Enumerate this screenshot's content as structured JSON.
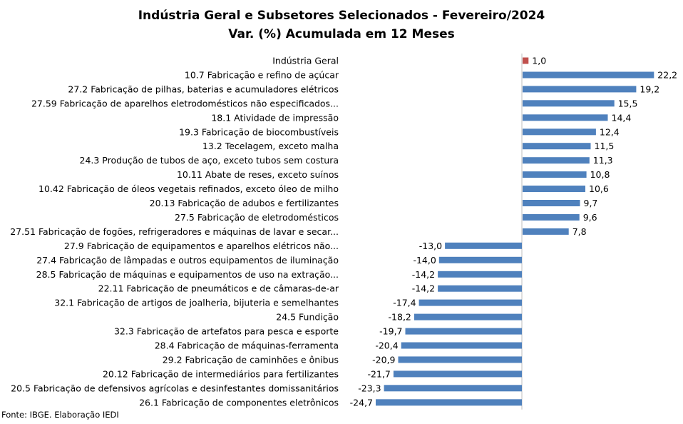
{
  "chart_data": {
    "type": "bar",
    "orientation": "horizontal",
    "title": "Indústria Geral e Subsetores Selecionados - Fevereiro/2024",
    "subtitle": "Var. (%) Acumulada em 12 Meses",
    "categories": [
      "Indústria Geral",
      "10.7 Fabricação e refino de açúcar",
      "27.2 Fabricação de pilhas, baterias e acumuladores elétricos",
      "27.59 Fabricação de aparelhos eletrodomésticos não especificados...",
      "18.1 Atividade de impressão",
      "19.3 Fabricação de biocombustíveis",
      "13.2 Tecelagem, exceto malha",
      "24.3 Produção de tubos de aço, exceto tubos sem costura",
      "10.11 Abate de reses, exceto suínos",
      "10.42 Fabricação de óleos vegetais refinados, exceto óleo de milho",
      "20.13 Fabricação de adubos e fertilizantes",
      "27.5 Fabricação de eletrodomésticos",
      "27.51 Fabricação de fogões, refrigeradores e máquinas de lavar e secar...",
      "27.9 Fabricação de equipamentos e aparelhos elétricos não...",
      "27.4 Fabricação de lâmpadas e outros equipamentos de iluminação",
      "28.5 Fabricação de máquinas e equipamentos de uso na extração...",
      "22.11 Fabricação de pneumáticos e de câmaras-de-ar",
      "32.1 Fabricação de artigos de joalheria, bijuteria e semelhantes",
      "24.5 Fundição",
      "32.3 Fabricação de artefatos para pesca e esporte",
      "28.4 Fabricação de máquinas-ferramenta",
      "29.2 Fabricação de caminhões e ônibus",
      "20.12 Fabricação de intermediários para fertilizantes",
      "20.5 Fabricação de defensivos agrícolas e desinfestantes domissanitários",
      "26.1 Fabricação de componentes eletrônicos"
    ],
    "values": [
      1.0,
      22.2,
      19.2,
      15.5,
      14.4,
      12.4,
      11.5,
      11.3,
      10.8,
      10.6,
      9.7,
      9.6,
      7.8,
      -13.0,
      -14.0,
      -14.2,
      -14.2,
      -17.4,
      -18.2,
      -19.7,
      -20.4,
      -20.9,
      -21.7,
      -23.3,
      -24.7
    ],
    "labels": [
      "1,0",
      "22,2",
      "19,2",
      "15,5",
      "14,4",
      "12,4",
      "11,5",
      "11,3",
      "10,8",
      "10,6",
      "9,7",
      "9,6",
      "7,8",
      "-13,0",
      "-14,0",
      "-14,2",
      "-14,2",
      "-17,4",
      "-18,2",
      "-19,7",
      "-20,4",
      "-20,9",
      "-21,7",
      "-23,3",
      "-24,7"
    ],
    "colors": {
      "highlight": "#C0504D",
      "bar": "#4F81BD"
    },
    "highlight_index": 0,
    "grid": false,
    "legend": "none"
  },
  "footer": {
    "source": "Fonte: IBGE. Elaboração IEDI"
  }
}
